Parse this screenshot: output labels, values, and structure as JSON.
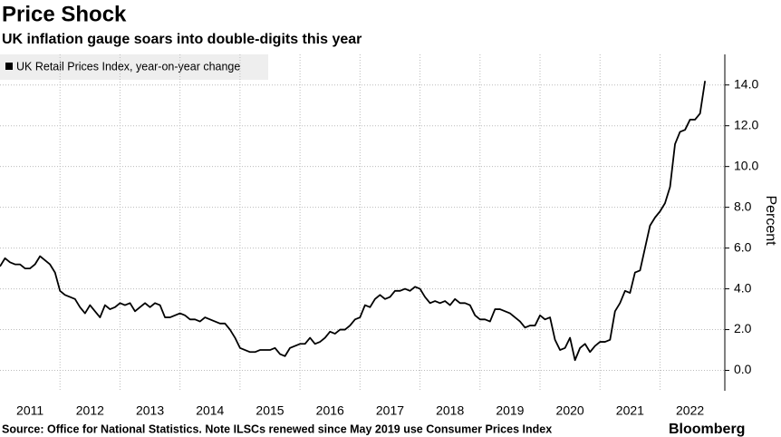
{
  "chart_data": {
    "type": "line",
    "title": "Price Shock",
    "subtitle": "UK inflation gauge soars into double-digits this year",
    "y_label": "Percent",
    "source": "Source: Office for National Statistics. Note ILSCs renewed since May 2019 use Consumer Prices Index",
    "brand": "Bloomberg",
    "xlim": [
      2011,
      2023.08
    ],
    "ylim": [
      -1,
      15.5
    ],
    "yticks": [
      {
        "value": 0,
        "label": "0.0"
      },
      {
        "value": 2,
        "label": "2.0"
      },
      {
        "value": 4,
        "label": "4.0"
      },
      {
        "value": 6,
        "label": "6.0"
      },
      {
        "value": 8,
        "label": "8.0"
      },
      {
        "value": 10,
        "label": "10.0"
      },
      {
        "value": 12,
        "label": "12.0"
      },
      {
        "value": 14,
        "label": "14.0"
      }
    ],
    "xgrid": [
      2012,
      2013,
      2014,
      2015,
      2016,
      2017,
      2018,
      2019,
      2020,
      2021,
      2022
    ],
    "xticks": [
      {
        "value": 2011.5,
        "label": "2011"
      },
      {
        "value": 2012.5,
        "label": "2012"
      },
      {
        "value": 2013.5,
        "label": "2013"
      },
      {
        "value": 2014.5,
        "label": "2014"
      },
      {
        "value": 2015.5,
        "label": "2015"
      },
      {
        "value": 2016.5,
        "label": "2016"
      },
      {
        "value": 2017.5,
        "label": "2017"
      },
      {
        "value": 2018.5,
        "label": "2018"
      },
      {
        "value": 2019.5,
        "label": "2019"
      },
      {
        "value": 2020.5,
        "label": "2020"
      },
      {
        "value": 2021.5,
        "label": "2021"
      },
      {
        "value": 2022.5,
        "label": "2022"
      }
    ],
    "grid": true,
    "x": [
      2011,
      2011.083,
      2011.167,
      2011.25,
      2011.333,
      2011.417,
      2011.5,
      2011.583,
      2011.667,
      2011.75,
      2011.833,
      2011.917,
      2012,
      2012.083,
      2012.167,
      2012.25,
      2012.333,
      2012.417,
      2012.5,
      2012.583,
      2012.667,
      2012.75,
      2012.833,
      2012.917,
      2013,
      2013.083,
      2013.167,
      2013.25,
      2013.333,
      2013.417,
      2013.5,
      2013.583,
      2013.667,
      2013.75,
      2013.833,
      2013.917,
      2014,
      2014.083,
      2014.167,
      2014.25,
      2014.333,
      2014.417,
      2014.5,
      2014.583,
      2014.667,
      2014.75,
      2014.833,
      2014.917,
      2015,
      2015.083,
      2015.167,
      2015.25,
      2015.333,
      2015.417,
      2015.5,
      2015.583,
      2015.667,
      2015.75,
      2015.833,
      2015.917,
      2016,
      2016.083,
      2016.167,
      2016.25,
      2016.333,
      2016.417,
      2016.5,
      2016.583,
      2016.667,
      2016.75,
      2016.833,
      2016.917,
      2017,
      2017.083,
      2017.167,
      2017.25,
      2017.333,
      2017.417,
      2017.5,
      2017.583,
      2017.667,
      2017.75,
      2017.833,
      2017.917,
      2018,
      2018.083,
      2018.167,
      2018.25,
      2018.333,
      2018.417,
      2018.5,
      2018.583,
      2018.667,
      2018.75,
      2018.833,
      2018.917,
      2019,
      2019.083,
      2019.167,
      2019.25,
      2019.333,
      2019.417,
      2019.5,
      2019.583,
      2019.667,
      2019.75,
      2019.833,
      2019.917,
      2020,
      2020.083,
      2020.167,
      2020.25,
      2020.333,
      2020.417,
      2020.5,
      2020.583,
      2020.667,
      2020.75,
      2020.833,
      2020.917,
      2021,
      2021.083,
      2021.167,
      2021.25,
      2021.333,
      2021.417,
      2021.5,
      2021.583,
      2021.667,
      2021.75,
      2021.833,
      2021.917,
      2022,
      2022.083,
      2022.167,
      2022.25,
      2022.333,
      2022.417,
      2022.5,
      2022.583,
      2022.667,
      2022.75
    ],
    "series": [
      {
        "name": "UK Retail Prices Index, year-on-year change",
        "color": "#000000",
        "values": [
          5.1,
          5.5,
          5.3,
          5.2,
          5.2,
          5.0,
          5.0,
          5.2,
          5.6,
          5.4,
          5.2,
          4.8,
          3.9,
          3.7,
          3.6,
          3.5,
          3.1,
          2.8,
          3.2,
          2.9,
          2.6,
          3.2,
          3.0,
          3.1,
          3.3,
          3.2,
          3.3,
          2.9,
          3.1,
          3.3,
          3.1,
          3.3,
          3.2,
          2.6,
          2.6,
          2.7,
          2.8,
          2.7,
          2.5,
          2.5,
          2.4,
          2.6,
          2.5,
          2.4,
          2.3,
          2.3,
          2.0,
          1.6,
          1.1,
          1.0,
          0.9,
          0.9,
          1.0,
          1.0,
          1.0,
          1.1,
          0.8,
          0.7,
          1.1,
          1.2,
          1.3,
          1.3,
          1.6,
          1.3,
          1.4,
          1.6,
          1.9,
          1.8,
          2.0,
          2.0,
          2.2,
          2.5,
          2.6,
          3.2,
          3.1,
          3.5,
          3.7,
          3.5,
          3.6,
          3.9,
          3.9,
          4.0,
          3.9,
          4.1,
          4.0,
          3.6,
          3.3,
          3.4,
          3.3,
          3.4,
          3.2,
          3.5,
          3.3,
          3.3,
          3.2,
          2.7,
          2.5,
          2.5,
          2.4,
          3.0,
          3.0,
          2.9,
          2.8,
          2.6,
          2.4,
          2.1,
          2.2,
          2.2,
          2.7,
          2.5,
          2.6,
          1.5,
          1.0,
          1.1,
          1.6,
          0.5,
          1.1,
          1.3,
          0.9,
          1.2,
          1.4,
          1.4,
          1.5,
          2.9,
          3.3,
          3.9,
          3.8,
          4.8,
          4.9,
          6.0,
          7.1,
          7.5,
          7.8,
          8.2,
          9.0,
          11.1,
          11.7,
          11.8,
          12.3,
          12.3,
          12.6,
          14.2
        ]
      }
    ]
  }
}
